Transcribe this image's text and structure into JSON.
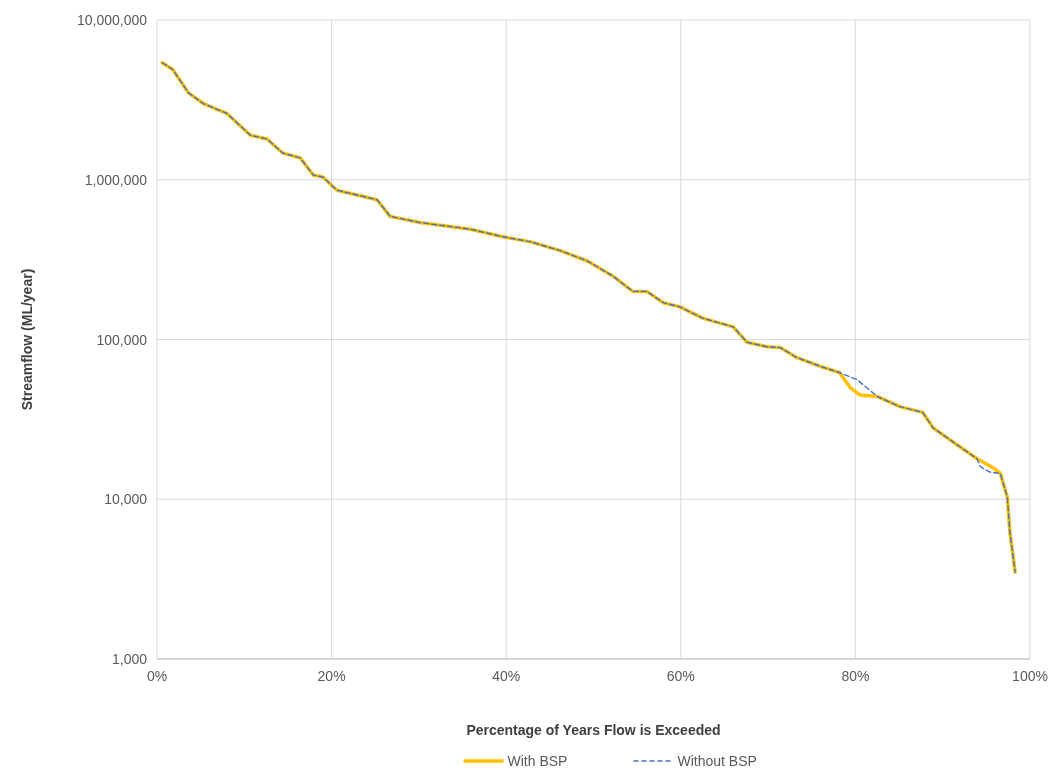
{
  "chart_data": {
    "type": "line",
    "xlabel": "Percentage of Years Flow is Exceeded",
    "ylabel": "Streamflow (ML/year)",
    "log": "y",
    "grid": true,
    "legend": "bottom",
    "xlim": [
      0,
      100
    ],
    "xticks": [
      {
        "value": 0,
        "label": "0%"
      },
      {
        "value": 20,
        "label": "20%"
      },
      {
        "value": 40,
        "label": "40%"
      },
      {
        "value": 60,
        "label": "60%"
      },
      {
        "value": 80,
        "label": "80%"
      },
      {
        "value": 100,
        "label": "100%"
      }
    ],
    "ylim": [
      1000,
      10000000
    ],
    "yticks": [
      {
        "value": 1000,
        "label": "1,000"
      },
      {
        "value": 10000,
        "label": "10,000"
      },
      {
        "value": 100000,
        "label": "100,000"
      },
      {
        "value": 1000000,
        "label": "1,000,000"
      },
      {
        "value": 10000000,
        "label": "10,000,000"
      }
    ],
    "series": [
      {
        "name": "With BSP",
        "color": "#ffc000",
        "line_style": "solid",
        "x": [
          0.6,
          1.8,
          3.6,
          5.3,
          8,
          10.7,
          12.6,
          14.4,
          16.4,
          17.9,
          19,
          20.6,
          25.2,
          26.7,
          30.1,
          35.9,
          39.6,
          42.7,
          46.2,
          49.3,
          52.2,
          54.5,
          56.1,
          58,
          59.9,
          62.5,
          66,
          67.6,
          69.9,
          71.4,
          73.3,
          76.3,
          78.2,
          79.4,
          80.5,
          82.5,
          85.1,
          87.7,
          88.9,
          91.6,
          93.9,
          95.8,
          96.6,
          97.4,
          97.7,
          98.3
        ],
        "values": [
          5400000,
          4900000,
          3500000,
          3000000,
          2600000,
          1900000,
          1800000,
          1470000,
          1370000,
          1070000,
          1040000,
          860000,
          750000,
          590000,
          540000,
          490000,
          440000,
          410000,
          360000,
          310000,
          250000,
          200000,
          200000,
          170000,
          160000,
          136000,
          120000,
          96000,
          90000,
          89000,
          77000,
          67000,
          62000,
          50000,
          45000,
          44000,
          38000,
          35000,
          28000,
          22000,
          18000,
          15700,
          14500,
          10300,
          6200,
          3500
        ]
      },
      {
        "name": "Without BSP",
        "color": "#4472c4",
        "line_style": "dashed",
        "x": [
          0.6,
          1.8,
          3.6,
          5.3,
          8,
          10.7,
          12.6,
          14.4,
          16.4,
          17.9,
          19,
          20.6,
          25.2,
          26.7,
          30.1,
          35.9,
          39.6,
          42.7,
          46.2,
          49.3,
          52.2,
          54.5,
          56.1,
          58,
          59.9,
          62.5,
          66,
          67.6,
          69.9,
          71.4,
          73.3,
          76.3,
          78.2,
          80.2,
          82.5,
          85.1,
          87.7,
          88.9,
          91.6,
          93.9,
          94.3,
          95.4,
          96.6,
          97.4,
          97.7,
          98.3
        ],
        "values": [
          5400000,
          4900000,
          3500000,
          3000000,
          2600000,
          1900000,
          1800000,
          1470000,
          1370000,
          1070000,
          1040000,
          860000,
          750000,
          590000,
          540000,
          490000,
          440000,
          410000,
          360000,
          310000,
          250000,
          200000,
          200000,
          170000,
          160000,
          136000,
          120000,
          96000,
          90000,
          89000,
          77000,
          67000,
          62000,
          56000,
          44000,
          38000,
          35000,
          28000,
          22000,
          18000,
          16000,
          14800,
          14500,
          10300,
          6200,
          3500
        ]
      }
    ]
  }
}
